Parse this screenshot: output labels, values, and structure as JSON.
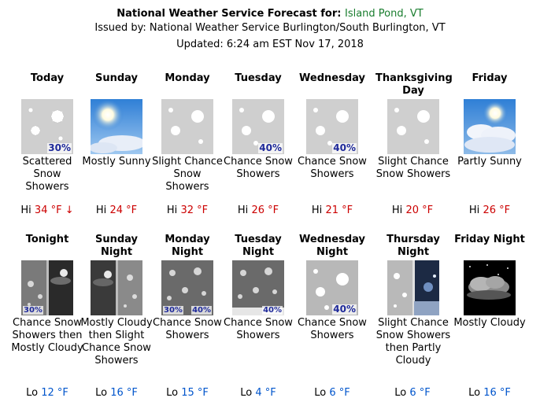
{
  "header": {
    "title_prefix": "National Weather Service Forecast for:",
    "location": "Island Pond, VT",
    "issued": "Issued by: National Weather Service Burlington/South Burlington, VT",
    "updated": "Updated: 6:24 am EST Nov 17, 2018"
  },
  "colors": {
    "hi": "#cc0000",
    "lo": "#0055cc",
    "location": "#197d2e"
  },
  "day_periods": [
    {
      "label": "Today",
      "icon": "snow-showers-icon",
      "pop": "30%",
      "desc": "Scattered Snow Showers",
      "temp_prefix": "Hi",
      "temp": "34 °F ↓"
    },
    {
      "label": "Sunday",
      "icon": "sunny-icon",
      "pop": "",
      "desc": "Mostly Sunny",
      "temp_prefix": "Hi",
      "temp": "24 °F"
    },
    {
      "label": "Monday",
      "icon": "snow-showers-icon",
      "pop": "",
      "desc": "Slight Chance Snow Showers",
      "temp_prefix": "Hi",
      "temp": "32 °F"
    },
    {
      "label": "Tuesday",
      "icon": "snow-showers-icon",
      "pop": "40%",
      "desc": "Chance Snow Showers",
      "temp_prefix": "Hi",
      "temp": "26 °F"
    },
    {
      "label": "Wednesday",
      "icon": "snow-showers-icon",
      "pop": "40%",
      "desc": "Chance Snow Showers",
      "temp_prefix": "Hi",
      "temp": "21 °F"
    },
    {
      "label": "Thanksgiving Day",
      "icon": "snow-showers-icon",
      "pop": "",
      "desc": "Slight Chance Snow Showers",
      "temp_prefix": "Hi",
      "temp": "20 °F"
    },
    {
      "label": "Friday",
      "icon": "partly-sunny-icon",
      "pop": "",
      "desc": "Partly Sunny",
      "temp_prefix": "Hi",
      "temp": "26 °F"
    }
  ],
  "night_periods": [
    {
      "label": "Tonight",
      "icon": "snow-then-cloudy-night-icon",
      "pop": "30%",
      "desc": "Chance Snow Showers then Mostly Cloudy",
      "temp_prefix": "Lo",
      "temp": "12 °F"
    },
    {
      "label": "Sunday Night",
      "icon": "cloudy-then-snow-night-icon",
      "pop": "",
      "desc": "Mostly Cloudy then Slight Chance Snow Showers",
      "temp_prefix": "Lo",
      "temp": "16 °F"
    },
    {
      "label": "Monday Night",
      "icon": "snow-night-icon",
      "pop": "30%",
      "pop2": "40%",
      "desc": "Chance Snow Showers",
      "temp_prefix": "Lo",
      "temp": "15 °F"
    },
    {
      "label": "Tuesday Night",
      "icon": "snow-night-icon",
      "pop": "40%",
      "desc": "Chance Snow Showers",
      "temp_prefix": "Lo",
      "temp": "4 °F"
    },
    {
      "label": "Wednesday Night",
      "icon": "snow-showers-icon",
      "pop": "40%",
      "desc": "Chance Snow Showers",
      "temp_prefix": "Lo",
      "temp": "6 °F"
    },
    {
      "label": "Thursday Night",
      "icon": "snow-then-partly-cloudy-night-icon",
      "pop": "",
      "desc": "Slight Chance Snow Showers then Partly Cloudy",
      "temp_prefix": "Lo",
      "temp": "6 °F"
    },
    {
      "label": "Friday Night",
      "icon": "mostly-cloudy-night-icon",
      "pop": "",
      "desc": "Mostly Cloudy",
      "temp_prefix": "Lo",
      "temp": "16 °F"
    }
  ]
}
